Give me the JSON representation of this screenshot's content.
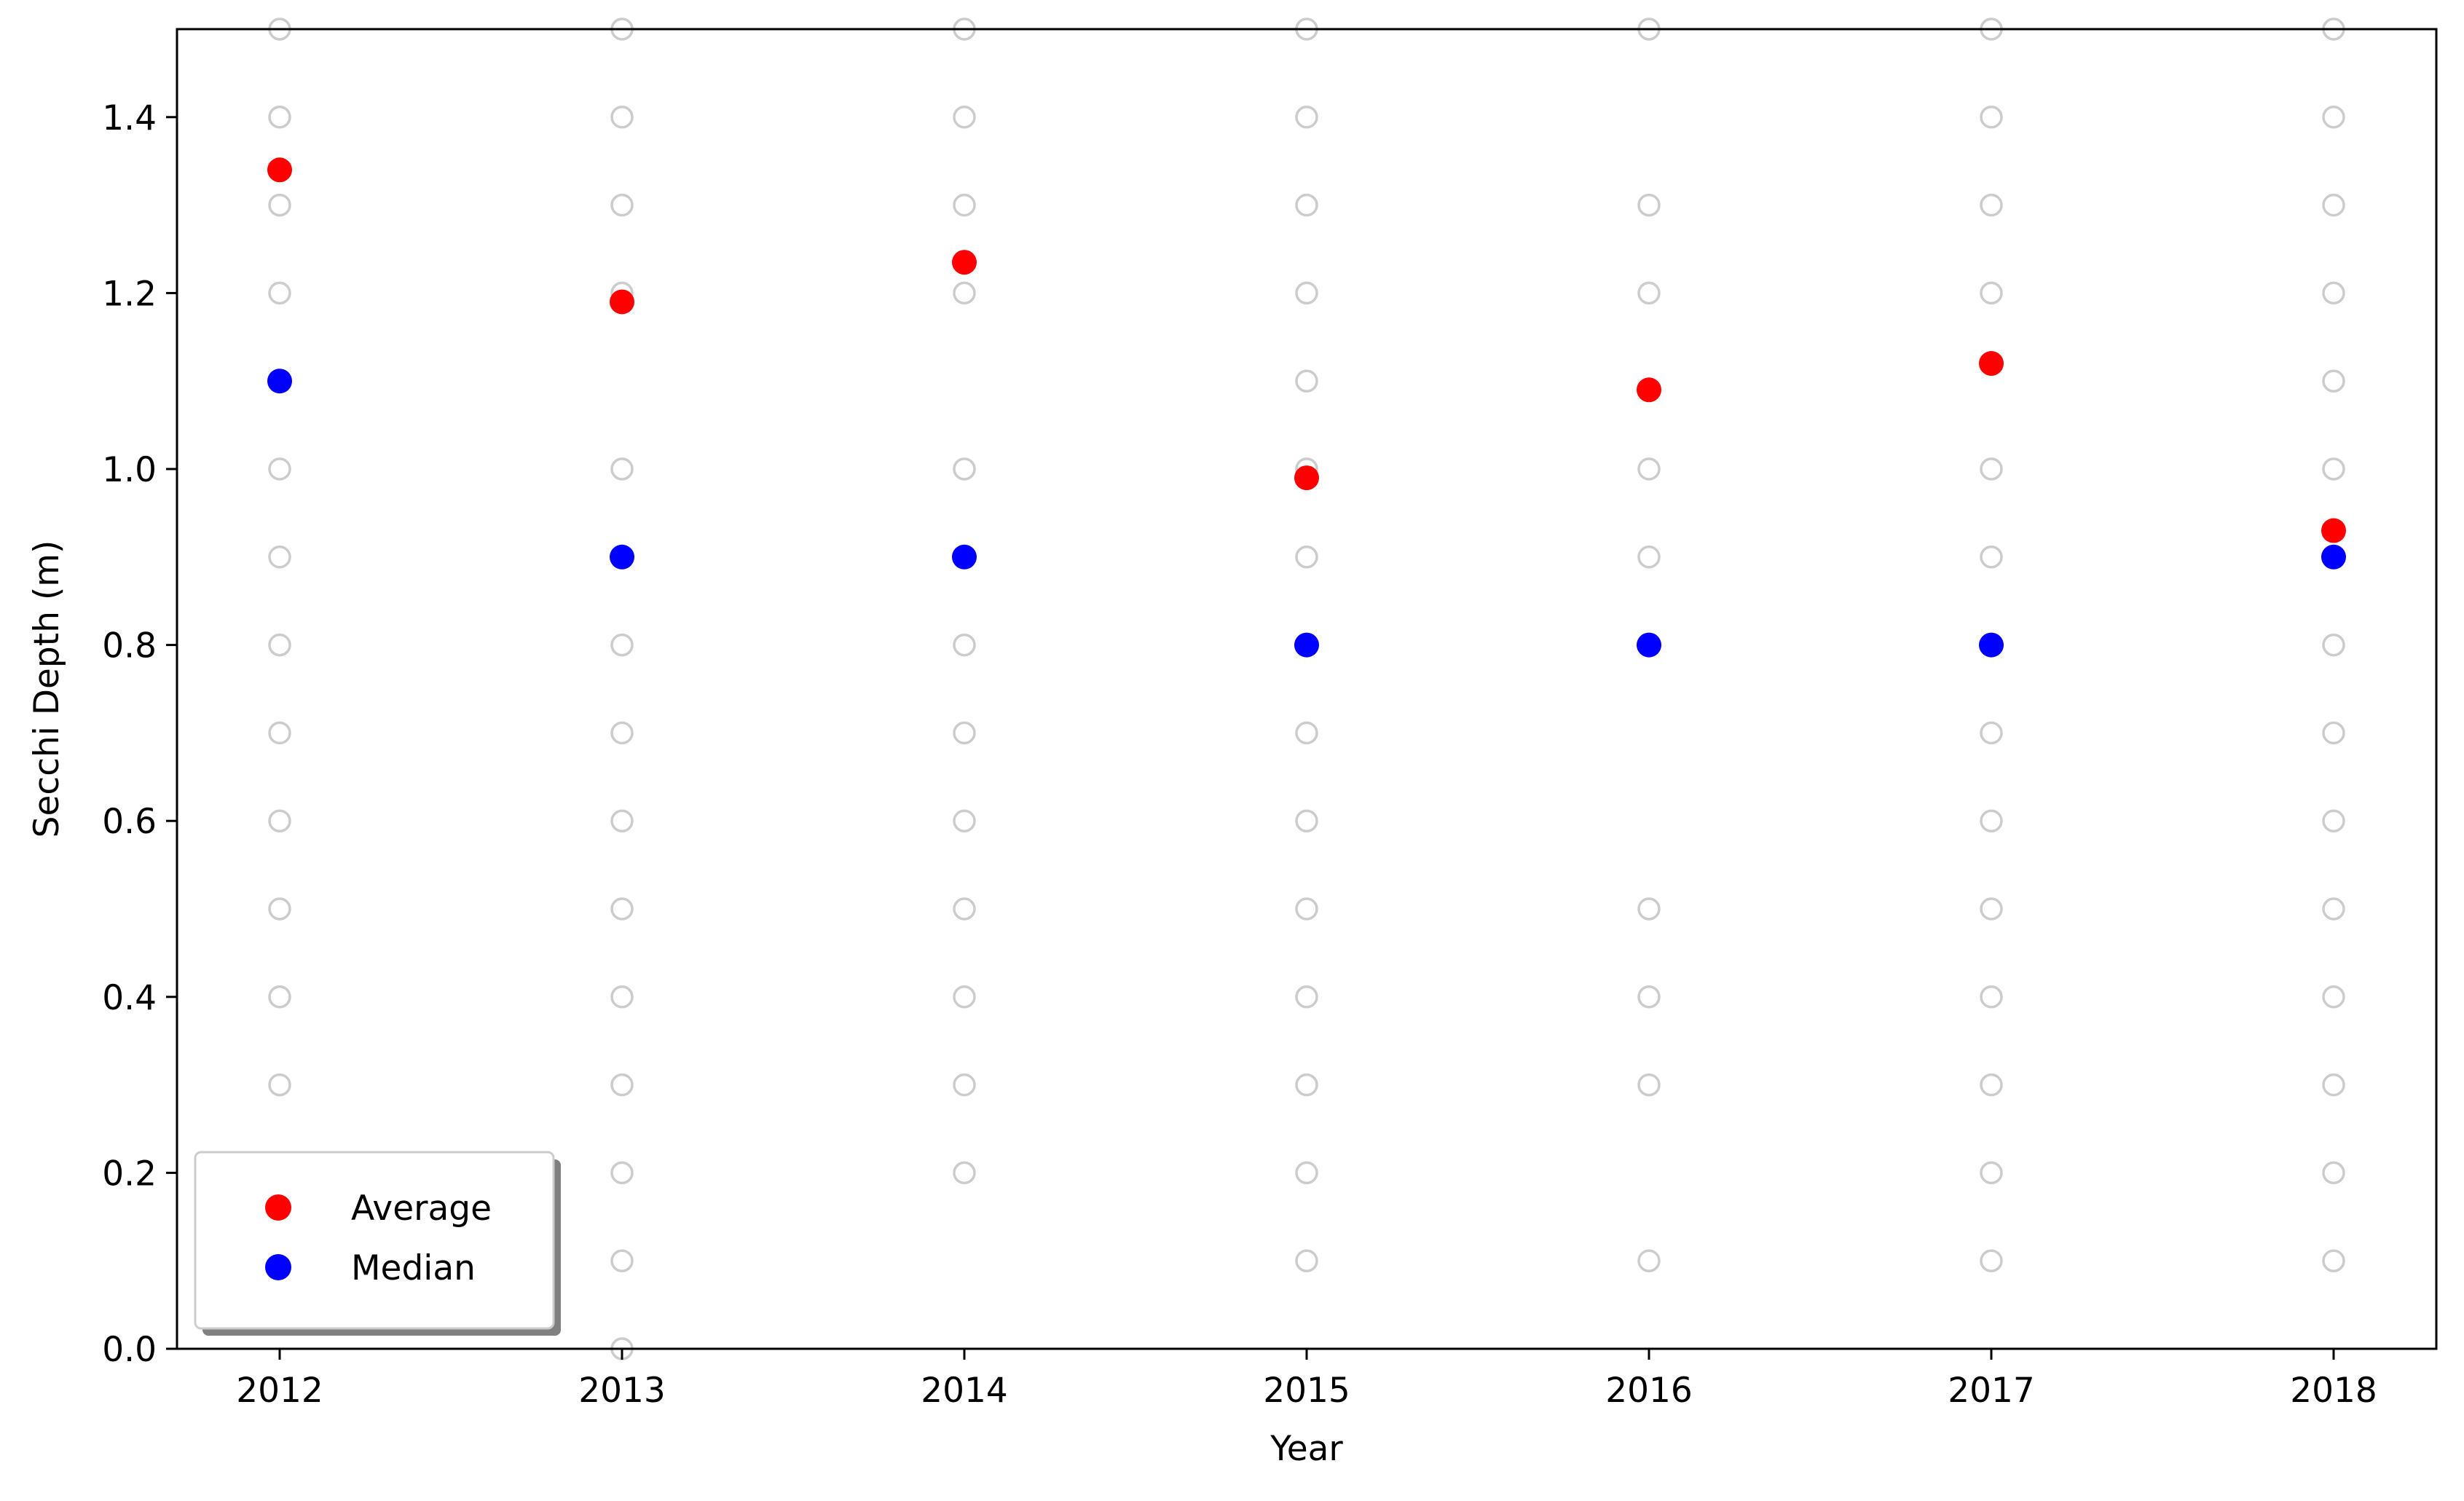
{
  "chart_data": {
    "type": "scatter",
    "xlabel": "Year",
    "ylabel": "Secchi Depth (m)",
    "x_ticks": [
      "2012",
      "2013",
      "2014",
      "2015",
      "2016",
      "2017",
      "2018"
    ],
    "y_ticks": [
      "0.0",
      "0.2",
      "0.4",
      "0.6",
      "0.8",
      "1.0",
      "1.2",
      "1.4"
    ],
    "xlim": [
      2011.7,
      2018.3
    ],
    "ylim": [
      0.0,
      1.5
    ],
    "grid": false,
    "legend_position": "lower-left",
    "observations": {
      "color": "#cccccc",
      "style": "hollow",
      "points": [
        {
          "year": 2012,
          "values": [
            0.3,
            0.4,
            0.5,
            0.6,
            0.7,
            0.8,
            0.9,
            1.0,
            1.1,
            1.2,
            1.3,
            1.4,
            1.5
          ]
        },
        {
          "year": 2013,
          "values": [
            0.0,
            0.1,
            0.2,
            0.3,
            0.4,
            0.5,
            0.6,
            0.7,
            0.8,
            1.0,
            1.2,
            1.3,
            1.4,
            1.5
          ]
        },
        {
          "year": 2014,
          "values": [
            0.2,
            0.3,
            0.4,
            0.5,
            0.6,
            0.7,
            0.8,
            1.0,
            1.2,
            1.3,
            1.4,
            1.5
          ]
        },
        {
          "year": 2015,
          "values": [
            0.1,
            0.2,
            0.3,
            0.4,
            0.5,
            0.6,
            0.7,
            0.9,
            1.0,
            1.1,
            1.2,
            1.3,
            1.4,
            1.5
          ]
        },
        {
          "year": 2016,
          "values": [
            0.1,
            0.3,
            0.4,
            0.5,
            0.9,
            1.0,
            1.2,
            1.3,
            1.5
          ]
        },
        {
          "year": 2017,
          "values": [
            0.1,
            0.2,
            0.3,
            0.4,
            0.5,
            0.6,
            0.7,
            0.9,
            1.0,
            1.2,
            1.3,
            1.4,
            1.5
          ]
        },
        {
          "year": 2018,
          "values": [
            0.1,
            0.2,
            0.3,
            0.4,
            0.5,
            0.6,
            0.7,
            0.8,
            1.0,
            1.1,
            1.2,
            1.3,
            1.4,
            1.5
          ]
        }
      ]
    },
    "series": [
      {
        "name": "Average",
        "color": "#ff0000",
        "x": [
          2012,
          2013,
          2014,
          2015,
          2016,
          2017,
          2018
        ],
        "values": [
          1.34,
          1.19,
          1.235,
          0.99,
          1.09,
          1.12,
          0.93
        ]
      },
      {
        "name": "Median",
        "color": "#0000ff",
        "x": [
          2012,
          2013,
          2014,
          2015,
          2016,
          2017,
          2018
        ],
        "values": [
          1.1,
          0.9,
          0.9,
          0.8,
          0.8,
          0.8,
          0.9
        ]
      }
    ]
  }
}
